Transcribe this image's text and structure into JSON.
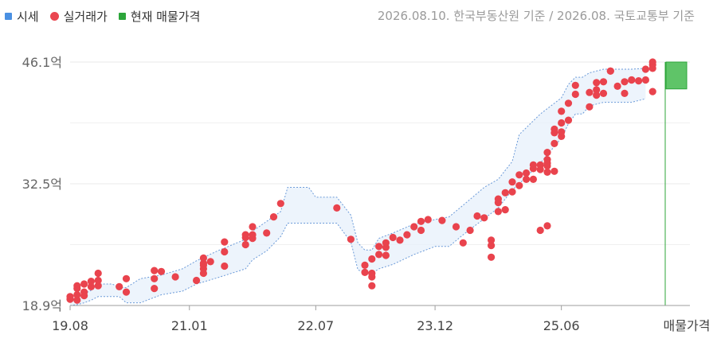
{
  "legend": {
    "items": [
      {
        "label": "시세",
        "color": "#4a90e2",
        "shape": "square"
      },
      {
        "label": "실거래가",
        "color": "#ea4650",
        "shape": "dot"
      },
      {
        "label": "현재 매물가격",
        "color": "#2ca53a",
        "shape": "square"
      }
    ]
  },
  "source_note": "2026.08.10. 한국부동산원 기준 / 2026.08. 국토교통부 기준",
  "chart_data": {
    "type": "scatter",
    "y_ticks": [
      "46.1억",
      "32.5억",
      "18.9억"
    ],
    "y_tick_values": [
      46.1,
      32.5,
      18.9
    ],
    "ylim": [
      18.9,
      46.1
    ],
    "x_range_months": [
      "2019-08",
      "2026-08"
    ],
    "x_ticks": [
      "19.08",
      "21.01",
      "22.07",
      "23.12",
      "25.06"
    ],
    "x_tick_dates": [
      "2019-08",
      "2021-01",
      "2022-07",
      "2023-12",
      "2025-06"
    ],
    "listing_label": "매물가격",
    "market_price_band": {
      "series": "시세",
      "upper": [
        [
          "2019-08",
          19.4
        ],
        [
          "2019-09",
          19.9
        ],
        [
          "2019-10",
          20.2
        ],
        [
          "2019-11",
          20.6
        ],
        [
          "2019-12",
          21.3
        ],
        [
          "2020-02",
          21.3
        ],
        [
          "2020-03",
          20.9
        ],
        [
          "2020-04",
          20.9
        ],
        [
          "2020-06",
          21.9
        ],
        [
          "2020-09",
          22.3
        ],
        [
          "2020-12",
          23.0
        ],
        [
          "2021-02",
          23.9
        ],
        [
          "2021-05",
          25.0
        ],
        [
          "2021-09",
          26.3
        ],
        [
          "2021-10",
          27.2
        ],
        [
          "2021-12",
          28.3
        ],
        [
          "2022-02",
          29.4
        ],
        [
          "2022-03",
          32.1
        ],
        [
          "2022-06",
          32.1
        ],
        [
          "2022-07",
          31.0
        ],
        [
          "2022-10",
          31.0
        ],
        [
          "2022-12",
          29.0
        ],
        [
          "2023-01",
          25.9
        ],
        [
          "2023-02",
          25.1
        ],
        [
          "2023-03",
          25.1
        ],
        [
          "2023-04",
          26.4
        ],
        [
          "2023-06",
          27.0
        ],
        [
          "2023-09",
          28.0
        ],
        [
          "2023-12",
          28.5
        ],
        [
          "2024-02",
          28.8
        ],
        [
          "2024-04",
          30.1
        ],
        [
          "2024-07",
          32.1
        ],
        [
          "2024-09",
          33.0
        ],
        [
          "2024-11",
          35.0
        ],
        [
          "2024-12",
          38.0
        ],
        [
          "2025-03",
          40.3
        ],
        [
          "2025-06",
          42.1
        ],
        [
          "2025-07",
          43.6
        ],
        [
          "2025-08",
          44.4
        ],
        [
          "2025-09",
          44.4
        ],
        [
          "2025-10",
          44.9
        ],
        [
          "2025-12",
          45.3
        ],
        [
          "2026-04",
          45.3
        ],
        [
          "2026-06",
          45.4
        ]
      ],
      "lower": [
        [
          "2019-08",
          18.9
        ],
        [
          "2019-09",
          19.0
        ],
        [
          "2019-10",
          19.2
        ],
        [
          "2019-11",
          19.5
        ],
        [
          "2019-12",
          19.9
        ],
        [
          "2020-02",
          19.9
        ],
        [
          "2020-03",
          19.9
        ],
        [
          "2020-04",
          19.2
        ],
        [
          "2020-06",
          19.2
        ],
        [
          "2020-09",
          20.1
        ],
        [
          "2020-12",
          20.5
        ],
        [
          "2021-02",
          21.3
        ],
        [
          "2021-05",
          22.0
        ],
        [
          "2021-09",
          23.0
        ],
        [
          "2021-10",
          24.0
        ],
        [
          "2021-12",
          25.0
        ],
        [
          "2022-02",
          26.6
        ],
        [
          "2022-03",
          28.1
        ],
        [
          "2022-06",
          28.1
        ],
        [
          "2022-07",
          28.1
        ],
        [
          "2022-10",
          28.1
        ],
        [
          "2022-12",
          26.0
        ],
        [
          "2023-01",
          22.9
        ],
        [
          "2023-02",
          22.5
        ],
        [
          "2023-03",
          22.5
        ],
        [
          "2023-04",
          23.0
        ],
        [
          "2023-06",
          23.5
        ],
        [
          "2023-09",
          24.6
        ],
        [
          "2023-12",
          25.5
        ],
        [
          "2024-02",
          25.5
        ],
        [
          "2024-04",
          26.8
        ],
        [
          "2024-07",
          28.6
        ],
        [
          "2024-09",
          29.8
        ],
        [
          "2024-11",
          31.8
        ],
        [
          "2024-12",
          32.5
        ],
        [
          "2025-03",
          34.8
        ],
        [
          "2025-06",
          37.6
        ],
        [
          "2025-07",
          39.2
        ],
        [
          "2025-08",
          40.3
        ],
        [
          "2025-09",
          40.3
        ],
        [
          "2025-10",
          41.2
        ],
        [
          "2025-12",
          41.6
        ],
        [
          "2026-04",
          41.6
        ],
        [
          "2026-06",
          42.0
        ]
      ]
    },
    "transactions": {
      "series": "실거래가",
      "points": [
        [
          "2019-08",
          19.6
        ],
        [
          "2019-08",
          19.9
        ],
        [
          "2019-09",
          19.5
        ],
        [
          "2019-09",
          20.1
        ],
        [
          "2019-09",
          20.8
        ],
        [
          "2019-09",
          21.1
        ],
        [
          "2019-10",
          20.4
        ],
        [
          "2019-10",
          21.3
        ],
        [
          "2019-10",
          20.0
        ],
        [
          "2019-11",
          21.0
        ],
        [
          "2019-11",
          21.6
        ],
        [
          "2019-12",
          21.1
        ],
        [
          "2019-12",
          21.7
        ],
        [
          "2019-12",
          22.5
        ],
        [
          "2020-03",
          21.0
        ],
        [
          "2020-04",
          20.4
        ],
        [
          "2020-04",
          21.9
        ],
        [
          "2020-08",
          20.8
        ],
        [
          "2020-08",
          21.9
        ],
        [
          "2020-08",
          22.8
        ],
        [
          "2020-09",
          22.7
        ],
        [
          "2020-11",
          22.1
        ],
        [
          "2021-02",
          21.7
        ],
        [
          "2021-03",
          22.5
        ],
        [
          "2021-03",
          23.0
        ],
        [
          "2021-03",
          23.4
        ],
        [
          "2021-03",
          23.6
        ],
        [
          "2021-03",
          24.2
        ],
        [
          "2021-04",
          23.8
        ],
        [
          "2021-06",
          23.3
        ],
        [
          "2021-06",
          24.9
        ],
        [
          "2021-06",
          26.0
        ],
        [
          "2021-09",
          25.7
        ],
        [
          "2021-09",
          26.5
        ],
        [
          "2021-09",
          26.8
        ],
        [
          "2021-10",
          26.4
        ],
        [
          "2021-10",
          26.8
        ],
        [
          "2021-10",
          27.7
        ],
        [
          "2021-12",
          27.0
        ],
        [
          "2022-01",
          28.8
        ],
        [
          "2022-02",
          30.3
        ],
        [
          "2022-10",
          29.8
        ],
        [
          "2022-12",
          26.3
        ],
        [
          "2023-02",
          22.6
        ],
        [
          "2023-02",
          23.4
        ],
        [
          "2023-03",
          24.1
        ],
        [
          "2023-03",
          21.1
        ],
        [
          "2023-03",
          22.1
        ],
        [
          "2023-03",
          22.5
        ],
        [
          "2023-04",
          24.6
        ],
        [
          "2023-04",
          25.5
        ],
        [
          "2023-05",
          24.5
        ],
        [
          "2023-05",
          25.4
        ],
        [
          "2023-05",
          25.9
        ],
        [
          "2023-06",
          26.5
        ],
        [
          "2023-07",
          26.2
        ],
        [
          "2023-08",
          26.8
        ],
        [
          "2023-09",
          27.7
        ],
        [
          "2023-10",
          28.3
        ],
        [
          "2023-10",
          27.3
        ],
        [
          "2023-11",
          28.5
        ],
        [
          "2024-01",
          28.4
        ],
        [
          "2024-03",
          27.7
        ],
        [
          "2024-04",
          25.9
        ],
        [
          "2024-05",
          27.3
        ],
        [
          "2024-06",
          28.9
        ],
        [
          "2024-07",
          28.7
        ],
        [
          "2024-08",
          24.3
        ],
        [
          "2024-08",
          25.6
        ],
        [
          "2024-08",
          26.2
        ],
        [
          "2024-09",
          29.4
        ],
        [
          "2024-09",
          30.4
        ],
        [
          "2024-09",
          30.8
        ],
        [
          "2024-10",
          29.6
        ],
        [
          "2024-10",
          31.5
        ],
        [
          "2024-11",
          31.6
        ],
        [
          "2024-11",
          32.7
        ],
        [
          "2024-12",
          33.5
        ],
        [
          "2024-12",
          32.3
        ],
        [
          "2025-01",
          33.0
        ],
        [
          "2025-01",
          33.7
        ],
        [
          "2025-02",
          33.0
        ],
        [
          "2025-02",
          34.2
        ],
        [
          "2025-02",
          34.6
        ],
        [
          "2025-03",
          27.3
        ],
        [
          "2025-03",
          34.6
        ],
        [
          "2025-03",
          34.1
        ],
        [
          "2025-04",
          33.8
        ],
        [
          "2025-04",
          34.5
        ],
        [
          "2025-04",
          34.8
        ],
        [
          "2025-04",
          36.0
        ],
        [
          "2025-04",
          27.8
        ],
        [
          "2025-04",
          35.2
        ],
        [
          "2025-05",
          33.9
        ],
        [
          "2025-05",
          37.0
        ],
        [
          "2025-05",
          38.2
        ],
        [
          "2025-05",
          38.6
        ],
        [
          "2025-06",
          37.8
        ],
        [
          "2025-06",
          38.3
        ],
        [
          "2025-06",
          39.3
        ],
        [
          "2025-06",
          40.6
        ],
        [
          "2025-07",
          39.6
        ],
        [
          "2025-07",
          41.5
        ],
        [
          "2025-08",
          42.5
        ],
        [
          "2025-08",
          43.5
        ],
        [
          "2025-10",
          41.1
        ],
        [
          "2025-10",
          42.7
        ],
        [
          "2025-11",
          42.4
        ],
        [
          "2025-11",
          43.0
        ],
        [
          "2025-11",
          43.8
        ],
        [
          "2025-12",
          42.6
        ],
        [
          "2025-12",
          43.9
        ],
        [
          "2026-01",
          45.1
        ],
        [
          "2026-01",
          45.1
        ],
        [
          "2026-02",
          43.4
        ],
        [
          "2026-03",
          42.6
        ],
        [
          "2026-03",
          43.9
        ],
        [
          "2026-04",
          44.1
        ],
        [
          "2026-04",
          44.1
        ],
        [
          "2026-05",
          44.0
        ],
        [
          "2026-06",
          44.1
        ],
        [
          "2026-06",
          45.3
        ],
        [
          "2026-07",
          42.8
        ],
        [
          "2026-07",
          45.8
        ],
        [
          "2026-07",
          46.1
        ],
        [
          "2026-07",
          45.4
        ]
      ]
    },
    "current_listing": {
      "series": "현재 매물가격",
      "low": 43.1,
      "high": 46.1
    }
  }
}
